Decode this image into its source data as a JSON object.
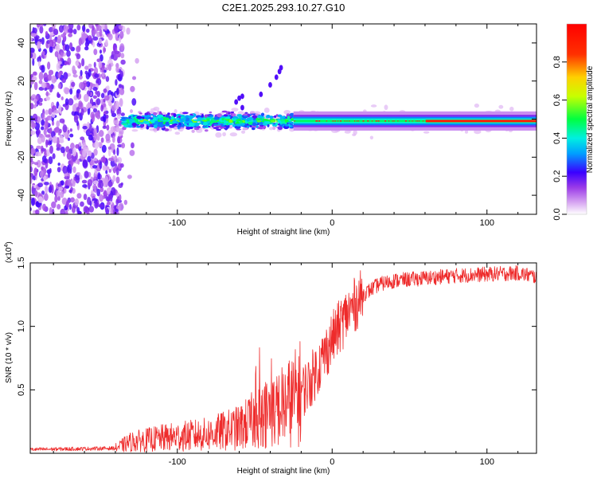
{
  "title": "C2E1.2025.293.10.27.G10",
  "chart_data": [
    {
      "type": "heatmap",
      "name": "spectrogram",
      "xlabel": "Height of straight line (km)",
      "ylabel": "Frequency (Hz)",
      "xlim": [
        -195,
        132
      ],
      "ylim": [
        -50,
        50
      ],
      "xticks": [
        -100,
        0,
        100
      ],
      "yticks": [
        40,
        20,
        0,
        -20,
        -40
      ],
      "ridge_frequency_hz": -1,
      "colorbar": {
        "label": "Normalized spectral amplitude",
        "range": [
          0,
          1
        ],
        "ticks": [
          0.0,
          0.2,
          0.4,
          0.6,
          0.8
        ],
        "colormap": [
          "#ffffff",
          "#d9a9f2",
          "#9b3ce8",
          "#3a00ff",
          "#00a0ff",
          "#00f0e0",
          "#00ff40",
          "#c8ff00",
          "#ffd000",
          "#ff3000",
          "#ff0000"
        ]
      },
      "regions": [
        {
          "description": "scattered noise",
          "x_range": [
            -195,
            -135
          ],
          "freq_range": [
            -50,
            50
          ]
        },
        {
          "description": "broadband signal",
          "x_range": [
            -135,
            -25
          ],
          "freq_range": [
            -8,
            6
          ]
        },
        {
          "description": "narrow signal",
          "x_range": [
            -25,
            132
          ],
          "freq_range": [
            -3,
            2
          ]
        },
        {
          "description": "spur",
          "x_range": [
            -65,
            -32
          ],
          "freq_range": [
            8,
            27
          ]
        }
      ]
    },
    {
      "type": "line",
      "name": "snr",
      "xlabel": "Height of straight line (km)",
      "ylabel": "SNR (10 * v/v)",
      "multiplier": "(x10",
      "multiplier_exp": "4",
      "multiplier_close": ")",
      "xlim": [
        -195,
        132
      ],
      "ylim": [
        0,
        1.5
      ],
      "xticks": [
        -100,
        0,
        100
      ],
      "yticks": [
        1.5,
        1.0,
        0.5
      ],
      "color": "#ee2b2b",
      "series": [
        {
          "name": "SNR envelope",
          "x": [
            -195,
            -140,
            -130,
            -110,
            -80,
            -60,
            -45,
            -35,
            -25,
            -15,
            -8,
            0,
            10,
            20,
            30,
            40,
            60,
            80,
            100,
            120,
            132
          ],
          "y": [
            0.03,
            0.04,
            0.09,
            0.12,
            0.15,
            0.2,
            0.3,
            0.35,
            0.42,
            0.55,
            0.7,
            0.9,
            1.1,
            1.25,
            1.33,
            1.36,
            1.38,
            1.4,
            1.41,
            1.42,
            1.39
          ]
        }
      ]
    }
  ]
}
